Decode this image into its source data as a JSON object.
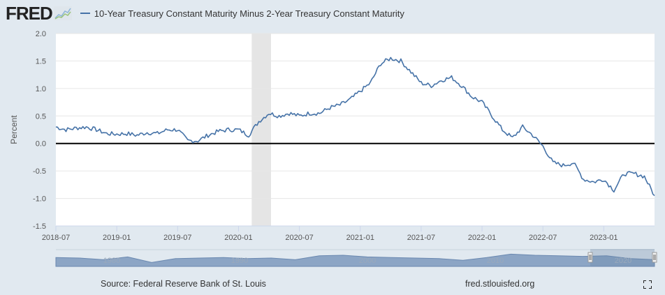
{
  "header": {
    "logo_text": "FRED",
    "logo_icon": "chart-line-icon",
    "legend_label": "10-Year Treasury Constant Maturity Minus 2-Year Treasury Constant Maturity"
  },
  "footer": {
    "source": "Source: Federal Reserve Bank of St. Louis",
    "url": "fred.stlouisfed.org",
    "fullscreen_icon": "fullscreen-icon"
  },
  "colors": {
    "series": "#4572a7",
    "background": "#e1e9f0",
    "plot_bg": "#ffffff",
    "recession": "#e5e5e5",
    "zero_line": "#000000",
    "navigator_fill": "#8ca5c5"
  },
  "chart_data": {
    "type": "line",
    "title": "10-Year Treasury Constant Maturity Minus 2-Year Treasury Constant Maturity",
    "xlabel": "",
    "ylabel": "Percent",
    "ylim": [
      -1.5,
      2.0
    ],
    "yticks": [
      "2.0",
      "1.5",
      "1.0",
      "0.5",
      "0.0",
      "-0.5",
      "-1.0",
      "-1.5"
    ],
    "ytick_values": [
      2.0,
      1.5,
      1.0,
      0.5,
      0.0,
      -0.5,
      -1.0,
      -1.5
    ],
    "xlim": [
      "2018-07",
      "2023-06"
    ],
    "xticks": [
      "2018-07",
      "2019-01",
      "2019-07",
      "2020-01",
      "2020-07",
      "2021-01",
      "2021-07",
      "2022-01",
      "2022-07",
      "2023-01"
    ],
    "xtick_months": [
      0,
      6,
      12,
      18,
      24,
      30,
      36,
      42,
      48,
      54
    ],
    "grid": true,
    "reference_line": 0.0,
    "recession": {
      "start_month": 19.3,
      "end_month": 21.2,
      "label": "2020-02 to 2020-04"
    },
    "series": [
      {
        "name": "10-Year Treasury Constant Maturity Minus 2-Year Treasury Constant Maturity",
        "x_start": "2018-07",
        "interval": "monthly",
        "values": [
          0.3,
          0.25,
          0.28,
          0.3,
          0.25,
          0.18,
          0.17,
          0.18,
          0.15,
          0.2,
          0.18,
          0.25,
          0.25,
          0.05,
          0.05,
          0.15,
          0.22,
          0.25,
          0.25,
          0.15,
          0.4,
          0.55,
          0.5,
          0.55,
          0.5,
          0.55,
          0.55,
          0.65,
          0.7,
          0.8,
          0.95,
          1.1,
          1.45,
          1.55,
          1.5,
          1.3,
          1.1,
          1.05,
          1.15,
          1.2,
          1.05,
          0.85,
          0.75,
          0.5,
          0.25,
          0.1,
          0.3,
          0.15,
          -0.05,
          -0.35,
          -0.4,
          -0.35,
          -0.65,
          -0.7,
          -0.65,
          -0.85,
          -0.55,
          -0.55,
          -0.6,
          -0.95
        ]
      }
    ],
    "legend": "top-left",
    "navigator": {
      "labels": [
        "1980",
        "1990",
        "2000",
        "2010",
        "2020"
      ],
      "selected_range": [
        "2018-07",
        "2023-06"
      ]
    }
  }
}
